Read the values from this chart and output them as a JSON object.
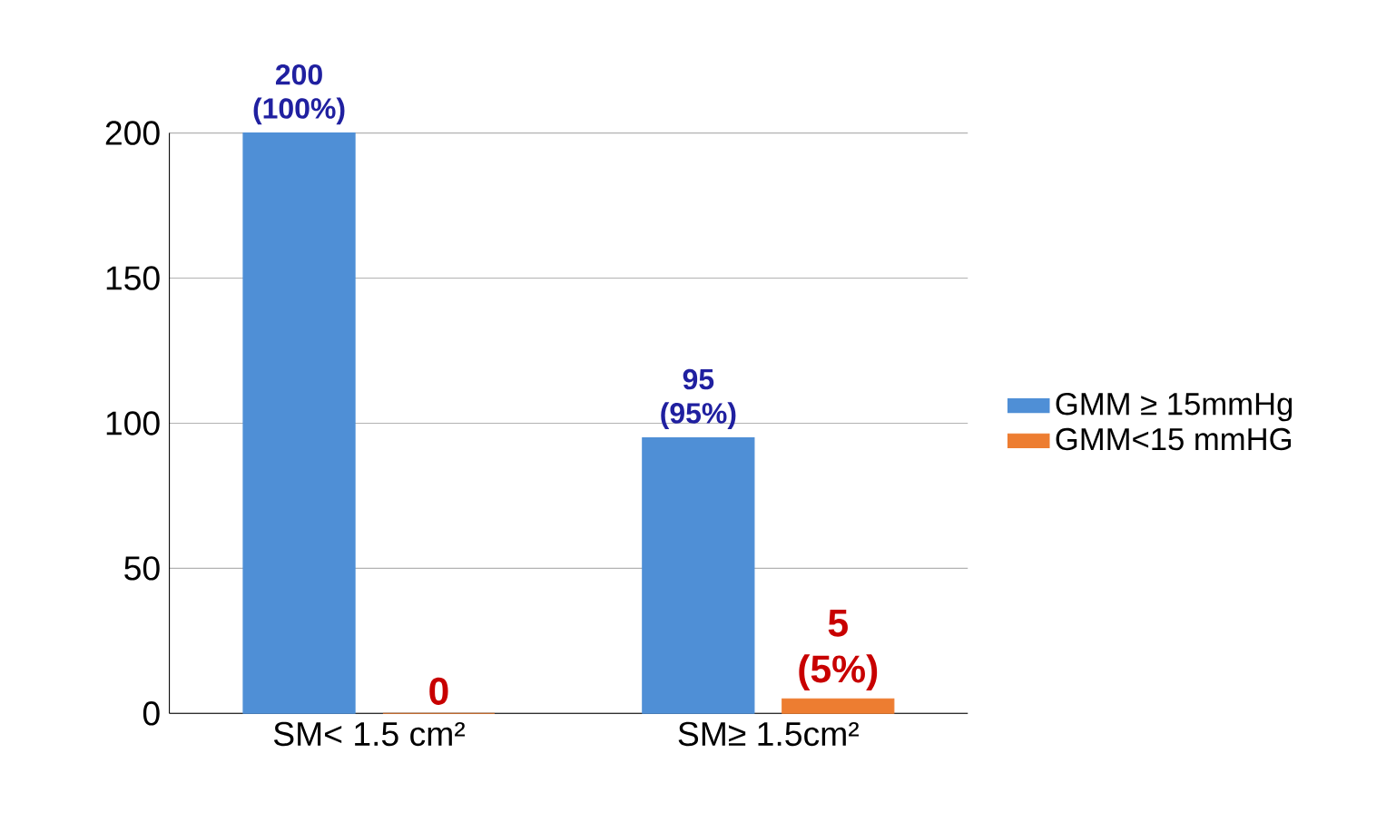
{
  "chart_data": {
    "type": "bar",
    "categories": [
      "SM< 1.5 cm²",
      "SM≥ 1.5cm²"
    ],
    "series": [
      {
        "name": "GMM ≥ 15mmHg",
        "color": "#4f8fd6",
        "values": [
          200,
          95
        ],
        "value_labels": [
          "200 (100%)",
          "95 (95%)"
        ]
      },
      {
        "name": "GMM<15 mmHG",
        "color": "#ed7d31",
        "values": [
          0,
          5
        ],
        "value_labels": [
          "0",
          "5 (5%)"
        ]
      }
    ],
    "ylim": [
      0,
      200
    ],
    "yticks": [
      0,
      50,
      100,
      150,
      200
    ],
    "grid": "y",
    "legend": "right"
  }
}
